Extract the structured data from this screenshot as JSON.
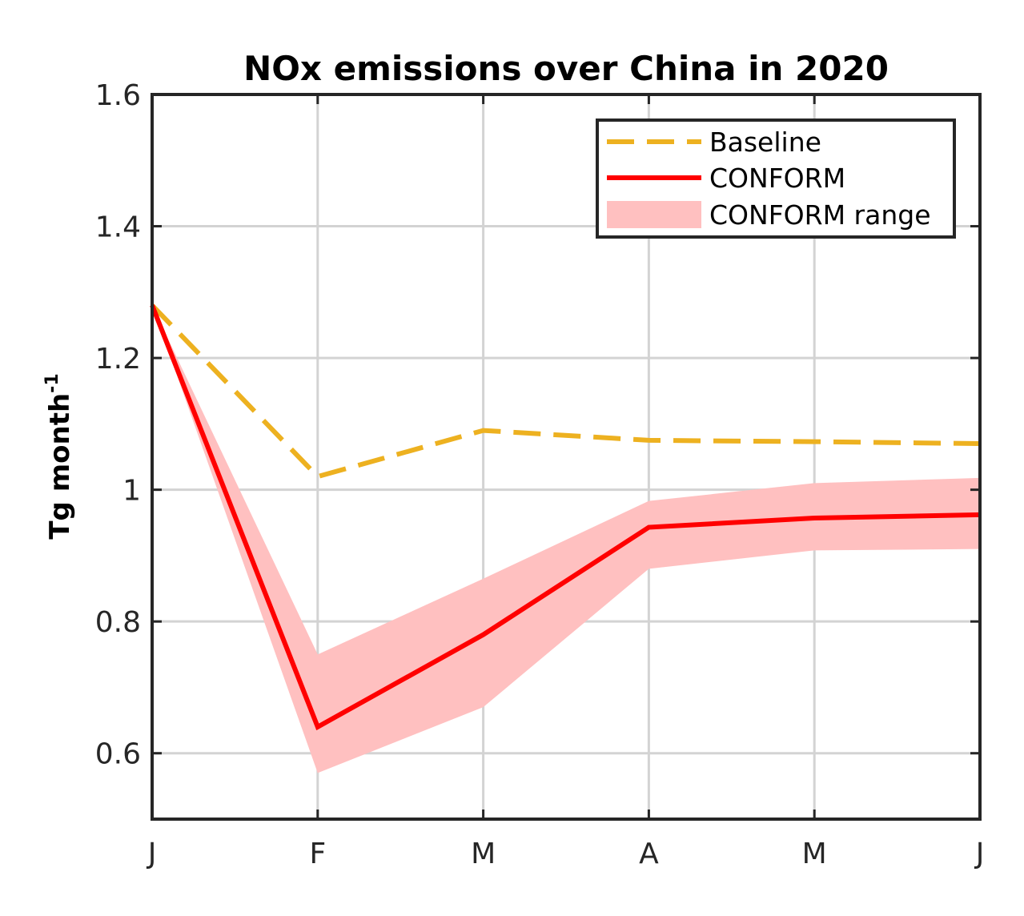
{
  "chart_data": {
    "type": "line",
    "title": "NOx emissions over China in 2020",
    "ylabel": "Tg month",
    "ylabel_superscript": "-1",
    "xlabel": "",
    "categories": [
      "J",
      "F",
      "M",
      "A",
      "M",
      "J"
    ],
    "ylim": [
      0.5,
      1.6
    ],
    "yticks": [
      0.6,
      0.8,
      1.0,
      1.2,
      1.4,
      1.6
    ],
    "ytick_labels": [
      "0.6",
      "0.8",
      "1",
      "1.2",
      "1.4",
      "1.6"
    ],
    "grid": true,
    "legend_position": "top-right",
    "series": [
      {
        "name": "Baseline",
        "style": "dashed",
        "color": "#EDB120",
        "values": [
          1.28,
          1.02,
          1.09,
          1.075,
          1.073,
          1.07
        ]
      },
      {
        "name": "CONFORM",
        "style": "solid",
        "color": "#FF0000",
        "values": [
          1.28,
          0.64,
          0.78,
          0.943,
          0.957,
          0.962
        ]
      }
    ],
    "range": {
      "name": "CONFORM range",
      "color": "#FFC0C0",
      "lower": [
        1.28,
        0.57,
        0.67,
        0.88,
        0.908,
        0.91
      ],
      "upper": [
        1.28,
        0.75,
        0.865,
        0.983,
        1.01,
        1.018
      ]
    }
  }
}
